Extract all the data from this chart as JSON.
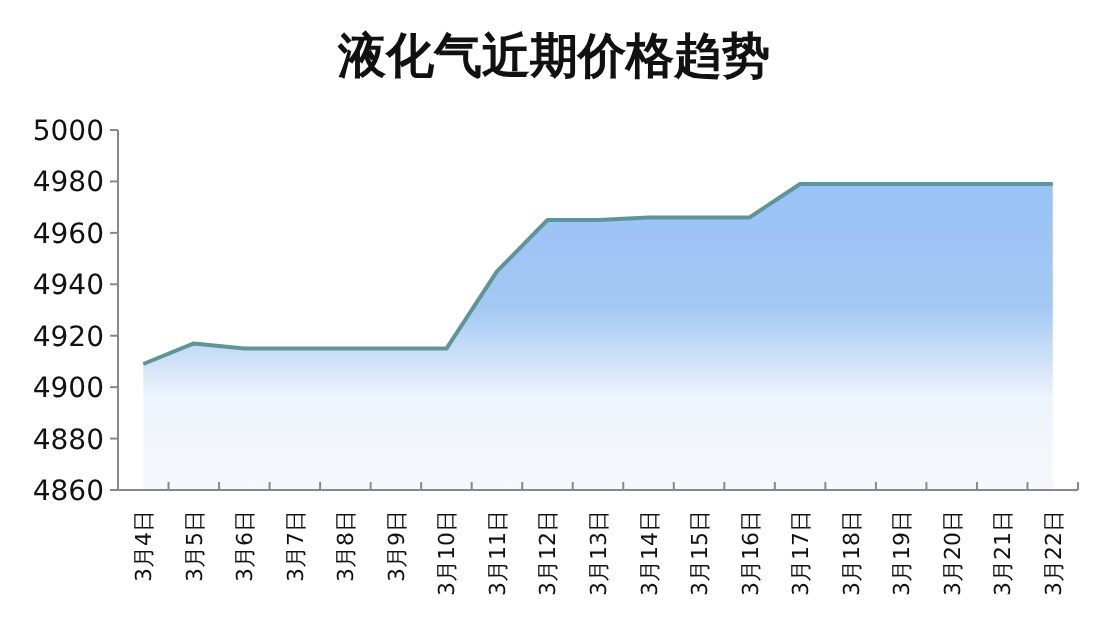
{
  "chart_data": {
    "type": "area",
    "title": "液化气近期价格趋势",
    "categories": [
      "3月4日",
      "3月5日",
      "3月6日",
      "3月7日",
      "3月8日",
      "3月9日",
      "3月10日",
      "3月11日",
      "3月12日",
      "3月13日",
      "3月14日",
      "3月15日",
      "3月16日",
      "3月17日",
      "3月18日",
      "3月19日",
      "3月20日",
      "3月21日",
      "3月22日"
    ],
    "series": [
      {
        "color": "#5f9597",
        "values": [
          4909,
          4917,
          4915,
          4915,
          4915,
          4915,
          4915,
          4945,
          4965,
          4965,
          4966,
          4966,
          4966,
          4979,
          4979,
          4979,
          4979,
          4979,
          4979
        ]
      }
    ],
    "ylim": [
      4860,
      5000
    ],
    "yticks": [
      4860,
      4880,
      4900,
      4920,
      4940,
      4960,
      4980,
      5000
    ],
    "grid": false
  }
}
